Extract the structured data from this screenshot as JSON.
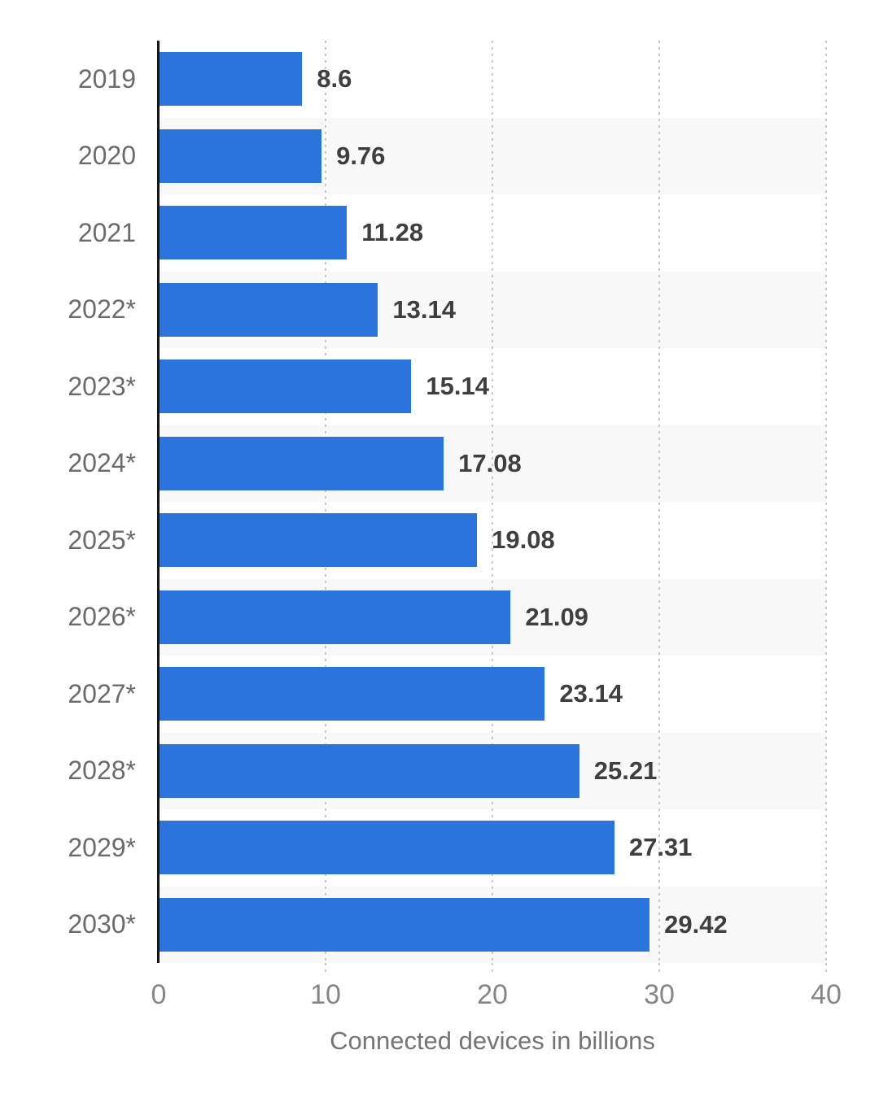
{
  "chart_data": {
    "type": "bar",
    "orientation": "horizontal",
    "title": "",
    "categories": [
      "2019",
      "2020",
      "2021",
      "2022*",
      "2023*",
      "2024*",
      "2025*",
      "2026*",
      "2027*",
      "2028*",
      "2029*",
      "2030*"
    ],
    "values": [
      8.6,
      9.76,
      11.28,
      13.14,
      15.14,
      17.08,
      19.08,
      21.09,
      23.14,
      25.21,
      27.31,
      29.42
    ],
    "value_labels": [
      "8.6",
      "9.76",
      "11.28",
      "13.14",
      "15.14",
      "17.08",
      "19.08",
      "21.09",
      "23.14",
      "25.21",
      "27.31",
      "29.42"
    ],
    "xlabel": "Connected devices in billions",
    "ylabel": "",
    "xlim": [
      0,
      40
    ],
    "xticks": [
      0,
      10,
      20,
      30,
      40
    ],
    "legend": "none",
    "grid": "vertical-dotted",
    "row_stripes": "alternating, second row shaded",
    "colors": {
      "bar": "#2b74dc",
      "row_stripe": "#f8f8f8",
      "gridline": "#c9c9c9",
      "axis_line": "#161616",
      "category_label": "#6b6b6b",
      "value_label": "#3f3f3f",
      "tick_label": "#868686",
      "axis_title": "#757575",
      "background": "#ffffff"
    }
  }
}
